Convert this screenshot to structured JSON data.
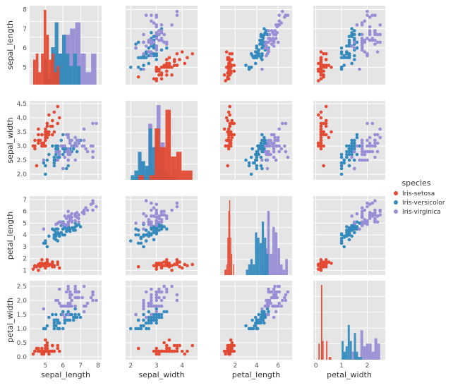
{
  "chart_data": {
    "type": "pairplot",
    "variables": [
      "sepal_length",
      "sepal_width",
      "petal_length",
      "petal_width"
    ],
    "legend": {
      "title": "species",
      "placement": "right",
      "entries": [
        "Iris-setosa",
        "Iris-versicolor",
        "Iris-virginica"
      ]
    },
    "colors": [
      "#e24a33",
      "#348abd",
      "#988ed5"
    ],
    "grid": true,
    "axes": {
      "sepal_length": {
        "lim": [
          4.1,
          8.2
        ],
        "ticks": [
          "5",
          "6",
          "7",
          "8"
        ]
      },
      "sepal_width": {
        "lim": [
          1.8,
          4.6
        ],
        "ticks": [
          "2",
          "3",
          "4"
        ]
      },
      "petal_length": {
        "lim": [
          0.6,
          7.3
        ],
        "ticks": [
          "2",
          "4",
          "6"
        ]
      },
      "petal_width": {
        "lim": [
          -0.1,
          2.7
        ],
        "ticks": [
          "0",
          "1",
          "2"
        ]
      }
    },
    "row_ticks": {
      "sepal_length": [
        "5",
        "6",
        "7",
        "8"
      ],
      "sepal_width": [
        "2.0",
        "2.5",
        "3.0",
        "3.5",
        "4.0",
        "4.5"
      ],
      "petal_length": [
        "1",
        "2",
        "3",
        "4",
        "5",
        "6",
        "7"
      ],
      "petal_width": [
        "0.0",
        "0.5",
        "1.0",
        "1.5",
        "2.0",
        "2.5"
      ]
    },
    "series": [
      {
        "name": "Iris-setosa",
        "points": [
          [
            5.1,
            3.5,
            1.4,
            0.2
          ],
          [
            4.9,
            3.0,
            1.4,
            0.2
          ],
          [
            4.7,
            3.2,
            1.3,
            0.2
          ],
          [
            4.6,
            3.1,
            1.5,
            0.2
          ],
          [
            5.0,
            3.6,
            1.4,
            0.2
          ],
          [
            5.4,
            3.9,
            1.7,
            0.4
          ],
          [
            4.6,
            3.4,
            1.4,
            0.3
          ],
          [
            5.0,
            3.4,
            1.5,
            0.2
          ],
          [
            4.4,
            2.9,
            1.4,
            0.2
          ],
          [
            4.9,
            3.1,
            1.5,
            0.1
          ],
          [
            5.4,
            3.7,
            1.5,
            0.2
          ],
          [
            4.8,
            3.4,
            1.6,
            0.2
          ],
          [
            4.8,
            3.0,
            1.4,
            0.1
          ],
          [
            4.3,
            3.0,
            1.1,
            0.1
          ],
          [
            5.8,
            4.0,
            1.2,
            0.2
          ],
          [
            5.7,
            4.4,
            1.5,
            0.4
          ],
          [
            5.4,
            3.9,
            1.3,
            0.4
          ],
          [
            5.1,
            3.5,
            1.4,
            0.3
          ],
          [
            5.7,
            3.8,
            1.7,
            0.3
          ],
          [
            5.1,
            3.8,
            1.5,
            0.3
          ],
          [
            5.4,
            3.4,
            1.7,
            0.2
          ],
          [
            5.1,
            3.7,
            1.5,
            0.4
          ],
          [
            4.6,
            3.6,
            1.0,
            0.2
          ],
          [
            5.1,
            3.3,
            1.7,
            0.5
          ],
          [
            4.8,
            3.4,
            1.9,
            0.2
          ],
          [
            5.0,
            3.0,
            1.6,
            0.2
          ],
          [
            5.0,
            3.4,
            1.6,
            0.4
          ],
          [
            5.2,
            3.5,
            1.5,
            0.2
          ],
          [
            5.2,
            3.4,
            1.4,
            0.2
          ],
          [
            4.7,
            3.2,
            1.6,
            0.2
          ],
          [
            4.8,
            3.1,
            1.6,
            0.2
          ],
          [
            5.4,
            3.4,
            1.5,
            0.4
          ],
          [
            5.2,
            4.1,
            1.5,
            0.1
          ],
          [
            5.5,
            4.2,
            1.4,
            0.2
          ],
          [
            4.9,
            3.1,
            1.5,
            0.1
          ],
          [
            5.0,
            3.2,
            1.2,
            0.2
          ],
          [
            5.5,
            3.5,
            1.3,
            0.2
          ],
          [
            4.9,
            3.1,
            1.5,
            0.1
          ],
          [
            4.4,
            3.0,
            1.3,
            0.2
          ],
          [
            5.1,
            3.4,
            1.5,
            0.2
          ],
          [
            5.0,
            3.5,
            1.3,
            0.3
          ],
          [
            4.5,
            2.3,
            1.3,
            0.3
          ],
          [
            4.4,
            3.2,
            1.3,
            0.2
          ],
          [
            5.0,
            3.5,
            1.6,
            0.6
          ],
          [
            5.1,
            3.8,
            1.9,
            0.4
          ],
          [
            4.8,
            3.0,
            1.4,
            0.3
          ],
          [
            5.1,
            3.8,
            1.6,
            0.2
          ],
          [
            4.6,
            3.2,
            1.4,
            0.2
          ],
          [
            5.3,
            3.7,
            1.5,
            0.2
          ],
          [
            5.0,
            3.3,
            1.4,
            0.2
          ]
        ]
      },
      {
        "name": "Iris-versicolor",
        "points": [
          [
            7.0,
            3.2,
            4.7,
            1.4
          ],
          [
            6.4,
            3.2,
            4.5,
            1.5
          ],
          [
            6.9,
            3.1,
            4.9,
            1.5
          ],
          [
            5.5,
            2.3,
            4.0,
            1.3
          ],
          [
            6.5,
            2.8,
            4.6,
            1.5
          ],
          [
            5.7,
            2.8,
            4.5,
            1.3
          ],
          [
            6.3,
            3.3,
            4.7,
            1.6
          ],
          [
            4.9,
            2.4,
            3.3,
            1.0
          ],
          [
            6.6,
            2.9,
            4.6,
            1.3
          ],
          [
            5.2,
            2.7,
            3.9,
            1.4
          ],
          [
            5.0,
            2.0,
            3.5,
            1.0
          ],
          [
            5.9,
            3.0,
            4.2,
            1.5
          ],
          [
            6.0,
            2.2,
            4.0,
            1.0
          ],
          [
            6.1,
            2.9,
            4.7,
            1.4
          ],
          [
            5.6,
            2.9,
            3.6,
            1.3
          ],
          [
            6.7,
            3.1,
            4.4,
            1.4
          ],
          [
            5.6,
            3.0,
            4.5,
            1.5
          ],
          [
            5.8,
            2.7,
            4.1,
            1.0
          ],
          [
            6.2,
            2.2,
            4.5,
            1.5
          ],
          [
            5.6,
            2.5,
            3.9,
            1.1
          ],
          [
            5.9,
            3.2,
            4.8,
            1.8
          ],
          [
            6.1,
            2.8,
            4.0,
            1.3
          ],
          [
            6.3,
            2.5,
            4.9,
            1.5
          ],
          [
            6.1,
            2.8,
            4.7,
            1.2
          ],
          [
            6.4,
            2.9,
            4.3,
            1.3
          ],
          [
            6.6,
            3.0,
            4.4,
            1.4
          ],
          [
            6.8,
            2.8,
            4.8,
            1.4
          ],
          [
            6.7,
            3.0,
            5.0,
            1.7
          ],
          [
            6.0,
            2.9,
            4.5,
            1.5
          ],
          [
            5.7,
            2.6,
            3.5,
            1.0
          ],
          [
            5.5,
            2.4,
            3.8,
            1.1
          ],
          [
            5.5,
            2.4,
            3.7,
            1.0
          ],
          [
            5.8,
            2.7,
            3.9,
            1.2
          ],
          [
            6.0,
            2.7,
            5.1,
            1.6
          ],
          [
            5.4,
            3.0,
            4.5,
            1.5
          ],
          [
            6.0,
            3.4,
            4.5,
            1.6
          ],
          [
            6.7,
            3.1,
            4.7,
            1.5
          ],
          [
            6.3,
            2.3,
            4.4,
            1.3
          ],
          [
            5.6,
            3.0,
            4.1,
            1.3
          ],
          [
            5.5,
            2.5,
            4.0,
            1.3
          ],
          [
            5.5,
            2.6,
            4.4,
            1.2
          ],
          [
            6.1,
            3.0,
            4.6,
            1.4
          ],
          [
            5.8,
            2.6,
            4.0,
            1.2
          ],
          [
            5.0,
            2.3,
            3.3,
            1.0
          ],
          [
            5.6,
            2.7,
            4.2,
            1.3
          ],
          [
            5.7,
            3.0,
            4.2,
            1.2
          ],
          [
            5.7,
            2.9,
            4.2,
            1.3
          ],
          [
            6.2,
            2.9,
            4.3,
            1.3
          ],
          [
            5.1,
            2.5,
            3.0,
            1.1
          ],
          [
            5.7,
            2.8,
            4.1,
            1.3
          ]
        ]
      },
      {
        "name": "Iris-virginica",
        "points": [
          [
            6.3,
            3.3,
            6.0,
            2.5
          ],
          [
            5.8,
            2.7,
            5.1,
            1.9
          ],
          [
            7.1,
            3.0,
            5.9,
            2.1
          ],
          [
            6.3,
            2.9,
            5.6,
            1.8
          ],
          [
            6.5,
            3.0,
            5.8,
            2.2
          ],
          [
            7.6,
            3.0,
            6.6,
            2.1
          ],
          [
            4.9,
            2.5,
            4.5,
            1.7
          ],
          [
            7.3,
            2.9,
            6.3,
            1.8
          ],
          [
            6.7,
            2.5,
            5.8,
            1.8
          ],
          [
            7.2,
            3.6,
            6.1,
            2.5
          ],
          [
            6.5,
            3.2,
            5.1,
            2.0
          ],
          [
            6.4,
            2.7,
            5.3,
            1.9
          ],
          [
            6.8,
            3.0,
            5.5,
            2.1
          ],
          [
            5.7,
            2.5,
            5.0,
            2.0
          ],
          [
            5.8,
            2.8,
            5.1,
            2.4
          ],
          [
            6.4,
            3.2,
            5.3,
            2.3
          ],
          [
            6.5,
            3.0,
            5.5,
            1.8
          ],
          [
            7.7,
            3.8,
            6.7,
            2.2
          ],
          [
            7.7,
            2.6,
            6.9,
            2.3
          ],
          [
            6.0,
            2.2,
            5.0,
            1.5
          ],
          [
            6.9,
            3.2,
            5.7,
            2.3
          ],
          [
            5.6,
            2.8,
            4.9,
            2.0
          ],
          [
            7.7,
            2.8,
            6.7,
            2.0
          ],
          [
            6.3,
            2.7,
            4.9,
            1.8
          ],
          [
            6.7,
            3.3,
            5.7,
            2.1
          ],
          [
            7.2,
            3.2,
            6.0,
            1.8
          ],
          [
            6.2,
            2.8,
            4.8,
            1.8
          ],
          [
            6.1,
            3.0,
            4.9,
            1.8
          ],
          [
            6.4,
            2.8,
            5.6,
            2.1
          ],
          [
            7.2,
            3.0,
            5.8,
            1.6
          ],
          [
            7.4,
            2.8,
            6.1,
            1.9
          ],
          [
            7.9,
            3.8,
            6.4,
            2.0
          ],
          [
            6.4,
            2.8,
            5.6,
            2.2
          ],
          [
            6.3,
            2.8,
            5.1,
            1.5
          ],
          [
            6.1,
            2.6,
            5.6,
            1.4
          ],
          [
            7.7,
            3.0,
            6.1,
            2.3
          ],
          [
            6.3,
            3.4,
            5.6,
            2.4
          ],
          [
            6.4,
            3.1,
            5.5,
            1.8
          ],
          [
            6.0,
            3.0,
            4.8,
            1.8
          ],
          [
            6.9,
            3.1,
            5.4,
            2.1
          ],
          [
            6.7,
            3.1,
            5.6,
            2.4
          ],
          [
            6.9,
            3.1,
            5.1,
            2.3
          ],
          [
            5.8,
            2.7,
            5.1,
            1.9
          ],
          [
            6.8,
            3.2,
            5.9,
            2.3
          ],
          [
            6.7,
            3.3,
            5.7,
            2.5
          ],
          [
            6.7,
            3.0,
            5.2,
            2.3
          ],
          [
            6.3,
            2.5,
            5.0,
            1.9
          ],
          [
            6.5,
            3.0,
            5.2,
            2.0
          ],
          [
            6.2,
            3.4,
            5.4,
            2.3
          ],
          [
            5.9,
            3.0,
            5.1,
            1.8
          ]
        ]
      }
    ]
  }
}
